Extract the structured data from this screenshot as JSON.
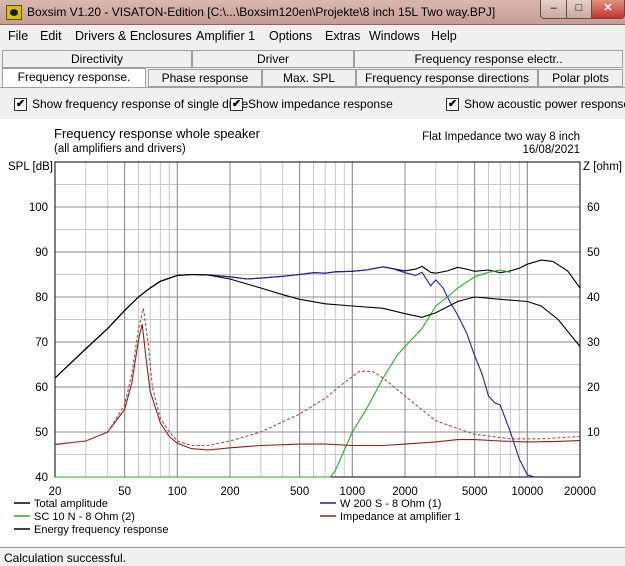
{
  "window": {
    "title": "Boxsim V1.20 - VISATON-Edition [C:\\...\\Boxsim120en\\Projekte\\8 inch 15L Two way.BPJ]",
    "minimize": "–",
    "maximize": "□",
    "close": "✕"
  },
  "menu": [
    "File",
    "Edit",
    "Drivers & Enclosures",
    "Amplifier 1",
    "Options",
    "Extras",
    "Windows",
    "Help"
  ],
  "tabs_top": [
    "Directivity",
    "Driver",
    "Frequency response electr.."
  ],
  "tabs_bottom": [
    "Frequency response.",
    "Phase response",
    "Max. SPL",
    "Frequency response directions",
    "Polar plots"
  ],
  "options": {
    "single_drive": {
      "label": "Show frequency response of single drive",
      "checked": true,
      "mark": "✔"
    },
    "impedance": {
      "label": "Show impedance response",
      "checked": true,
      "mark": "✔"
    },
    "acoustic_power": {
      "label": "Show acoustic power response",
      "checked": true,
      "mark": "✔"
    }
  },
  "chart_data": {
    "type": "line",
    "title": "Frequency response whole speaker",
    "subtitle": "(all amplifiers and drivers)",
    "project": "Flat Impedance two way 8 inch",
    "date": "16/08/2021",
    "ylabel": "SPL [dB]",
    "y2label": "Z [ohm]",
    "xscale": "log",
    "xlim": [
      20,
      20000
    ],
    "ylim": [
      40,
      110
    ],
    "y2lim": [
      0,
      70
    ],
    "x_ticks": [
      20,
      50,
      100,
      200,
      500,
      1000,
      2000,
      5000,
      10000,
      20000
    ],
    "y_ticks": [
      40,
      50,
      60,
      70,
      80,
      90,
      100
    ],
    "y2_ticks": [
      10,
      20,
      30,
      40,
      50,
      60
    ],
    "grid": true,
    "legend_position": "bottom",
    "series": [
      {
        "name": "Total amplitude",
        "color": "#000000",
        "dash": "solid",
        "axis": "y",
        "x": [
          20,
          30,
          40,
          50,
          60,
          70,
          80,
          100,
          120,
          150,
          200,
          250,
          300,
          400,
          500,
          600,
          700,
          800,
          1000,
          1200,
          1400,
          1500,
          1700,
          2000,
          2300,
          2500,
          2800,
          3000,
          3500,
          4000,
          4500,
          5000,
          6000,
          7000,
          8000,
          9000,
          10000,
          12000,
          14000,
          17000,
          20000
        ],
        "y": [
          62,
          68.5,
          73,
          77,
          80,
          82,
          83.5,
          84.8,
          85,
          84.9,
          84.5,
          84,
          84.2,
          84.6,
          85,
          85.4,
          85.3,
          85.6,
          85.7,
          86,
          86.5,
          86.7,
          86.3,
          85.8,
          86.2,
          86.8,
          85.5,
          85.3,
          85.8,
          86.6,
          86.2,
          85.7,
          86,
          85.4,
          85.8,
          86.4,
          87.3,
          88.2,
          87.9,
          85.8,
          82
        ]
      },
      {
        "name": "W 200 S - 8 Ohm (1)",
        "color": "#1f1fa8",
        "dash": "solid",
        "axis": "y",
        "x": [
          20,
          30,
          40,
          50,
          60,
          70,
          80,
          100,
          120,
          150,
          200,
          250,
          300,
          400,
          500,
          600,
          700,
          800,
          1000,
          1200,
          1400,
          1500,
          1700,
          2000,
          2300,
          2500,
          2800,
          3000,
          3300,
          3600,
          4000,
          4500,
          5000,
          5500,
          6000,
          6500,
          7000,
          8000,
          9000,
          10000,
          11000
        ],
        "y": [
          62,
          68.5,
          73,
          77,
          80,
          82,
          83.5,
          84.8,
          85,
          84.9,
          84.5,
          84,
          84.2,
          84.6,
          85,
          85.4,
          85.3,
          85.6,
          85.7,
          86,
          86.5,
          86.7,
          86.3,
          85.4,
          84.8,
          85.5,
          82.5,
          83.8,
          82,
          79,
          76,
          72,
          67,
          63,
          58,
          56.5,
          56,
          50,
          44,
          40.5,
          40
        ]
      },
      {
        "name": "SC 10 N - 8 Ohm (2)",
        "color": "#22b022",
        "dash": "solid",
        "axis": "y",
        "x": [
          20,
          100,
          300,
          600,
          750,
          800,
          900,
          1000,
          1200,
          1500,
          1800,
          2000,
          2500,
          3000,
          3500,
          4000,
          5000,
          6000,
          7000,
          8000
        ],
        "y": [
          40,
          40,
          40,
          40,
          40,
          41.5,
          46,
          50,
          55,
          62,
          67,
          69,
          73,
          78,
          80,
          82,
          84.5,
          85.5,
          86,
          85.5
        ]
      },
      {
        "name": "Energy frequency response",
        "color": "#000000",
        "dash": "solid",
        "axis": "y",
        "x": [
          20,
          30,
          40,
          50,
          60,
          70,
          80,
          100,
          120,
          150,
          200,
          300,
          400,
          500,
          700,
          1000,
          1500,
          2000,
          2500,
          3000,
          4000,
          5000,
          7000,
          10000,
          12000,
          15000,
          20000
        ],
        "y": [
          62,
          68.5,
          73,
          77,
          80,
          82,
          83.5,
          84.8,
          85,
          84.9,
          84,
          82,
          80.5,
          79.5,
          78.5,
          78,
          77.5,
          76.3,
          75.5,
          76.5,
          79,
          80,
          79.5,
          79,
          78,
          75,
          69
        ]
      },
      {
        "name": "Impedance at amplifier 1",
        "color": "#8b2020",
        "dash": "solid",
        "axis": "y2",
        "x": [
          20,
          30,
          40,
          50,
          55,
          60,
          63,
          66,
          70,
          80,
          90,
          100,
          120,
          150,
          200,
          300,
          500,
          700,
          1000,
          1500,
          2000,
          3000,
          4000,
          5000,
          7000,
          10000,
          15000,
          20000
        ],
        "y": [
          7.2,
          8,
          10,
          15,
          21,
          30.5,
          34,
          27,
          19,
          12,
          9,
          7.5,
          6.3,
          6,
          6.5,
          7,
          7.3,
          7.3,
          7,
          7,
          7.3,
          7.8,
          8.3,
          8.3,
          8,
          7.8,
          7.9,
          8.1
        ]
      },
      {
        "name": "",
        "color": "#a05050",
        "dash": "dashed",
        "axis": "y2",
        "x": [
          20,
          30,
          40,
          50,
          55,
          60,
          64,
          68,
          72,
          80,
          90,
          100,
          120,
          150,
          200,
          300,
          500,
          700,
          900,
          1100,
          1300,
          1500,
          2000,
          3000,
          5000,
          8000,
          12000,
          20000
        ],
        "y": [
          7.3,
          8,
          10,
          16,
          23,
          33,
          37.5,
          30,
          20,
          13,
          10,
          8,
          7,
          7,
          8,
          10,
          14,
          17.5,
          21,
          23.5,
          23.5,
          22,
          18,
          12.5,
          9.5,
          8.5,
          8.5,
          9
        ]
      }
    ],
    "legend": [
      {
        "label": "Total amplitude",
        "color": "#000000"
      },
      {
        "label": "W 200 S - 8 Ohm (1)",
        "color": "#1f1fa8"
      },
      {
        "label": "SC 10 N - 8 Ohm (2)",
        "color": "#22b022"
      },
      {
        "label": "Impedance at amplifier 1",
        "color": "#8b2020"
      },
      {
        "label": "Energy frequency response",
        "color": "#000000"
      }
    ]
  },
  "status": "Calculation successful."
}
